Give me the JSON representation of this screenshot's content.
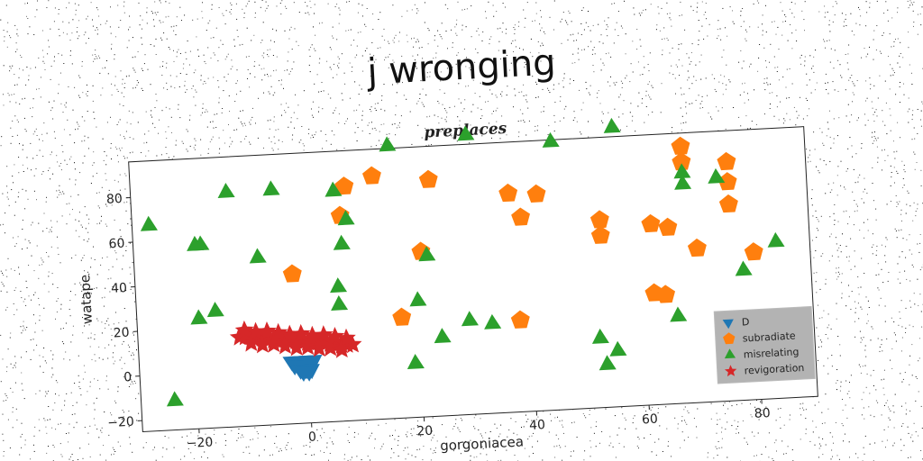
{
  "figure_title": "j wronging",
  "chart_data": {
    "type": "scatter",
    "title": "preplaces",
    "xlabel": "gorgoniacea",
    "ylabel": "watape",
    "xlim": [
      -30,
      90
    ],
    "ylim": [
      -25,
      96
    ],
    "x_ticks": [
      -20,
      0,
      20,
      40,
      60,
      80
    ],
    "y_ticks": [
      -20,
      0,
      20,
      40,
      60,
      80
    ],
    "grid": false,
    "legend_placement": "lower-right",
    "series": [
      {
        "name": "D",
        "color": "#1f77b4",
        "marker": "triangle-down",
        "points": [
          [
            -3,
            3
          ],
          [
            -2,
            3
          ],
          [
            -1,
            3
          ],
          [
            0,
            3
          ],
          [
            1,
            3
          ],
          [
            -2.5,
            1
          ],
          [
            -1.5,
            1
          ],
          [
            -0.5,
            1
          ],
          [
            0.5,
            1
          ],
          [
            -1.5,
            -1
          ],
          [
            -0.5,
            -1
          ],
          [
            0.5,
            -1
          ],
          [
            -1,
            -2
          ],
          [
            0,
            -2
          ]
        ]
      },
      {
        "name": "subradiate",
        "color": "#ff7f0e",
        "marker": "pentagon",
        "points": [
          [
            -2,
            42
          ],
          [
            8,
            80
          ],
          [
            7,
            67
          ],
          [
            13,
            84
          ],
          [
            21,
            49
          ],
          [
            23,
            81
          ],
          [
            17,
            20
          ],
          [
            37,
            73
          ],
          [
            39,
            62
          ],
          [
            42,
            72
          ],
          [
            38,
            16
          ],
          [
            53,
            59
          ],
          [
            53,
            52
          ],
          [
            62,
            56
          ],
          [
            65,
            54
          ],
          [
            62,
            25
          ],
          [
            64,
            24
          ],
          [
            68,
            83
          ],
          [
            70,
            44
          ],
          [
            76,
            82
          ],
          [
            76,
            73
          ],
          [
            76,
            63
          ],
          [
            80,
            41
          ],
          [
            68,
            90
          ]
        ]
      },
      {
        "name": "misrelating",
        "color": "#2ca02c",
        "marker": "triangle-up",
        "points": [
          [
            -27,
            67
          ],
          [
            -19,
            57
          ],
          [
            -18,
            57
          ],
          [
            -13,
            80
          ],
          [
            -8,
            50
          ],
          [
            -5,
            80
          ],
          [
            -19,
            24
          ],
          [
            -16,
            27
          ],
          [
            -24,
            -12
          ],
          [
            6,
            78
          ],
          [
            7,
            54
          ],
          [
            8,
            65
          ],
          [
            6,
            35
          ],
          [
            6,
            27
          ],
          [
            16,
            97
          ],
          [
            20,
            27
          ],
          [
            22,
            47
          ],
          [
            19,
            -1
          ],
          [
            24,
            10
          ],
          [
            29,
            17
          ],
          [
            33,
            15
          ],
          [
            30,
            100
          ],
          [
            45,
            95
          ],
          [
            52,
            6
          ],
          [
            53,
            -6
          ],
          [
            55,
            0
          ],
          [
            56,
            100
          ],
          [
            66,
            14
          ],
          [
            68,
            78
          ],
          [
            68,
            73
          ],
          [
            74,
            75
          ],
          [
            78,
            33
          ],
          [
            84,
            45
          ]
        ]
      },
      {
        "name": "revigoration",
        "color": "#d62728",
        "marker": "star",
        "points": [
          [
            -12,
            15
          ],
          [
            -11,
            15
          ],
          [
            -10,
            15
          ],
          [
            -9,
            14
          ],
          [
            -8,
            14
          ],
          [
            -7,
            14
          ],
          [
            -6,
            13
          ],
          [
            -5,
            13
          ],
          [
            -4,
            13
          ],
          [
            -3,
            12
          ],
          [
            -2,
            12
          ],
          [
            -1,
            12
          ],
          [
            0,
            11
          ],
          [
            1,
            11
          ],
          [
            2,
            11
          ],
          [
            3,
            10
          ],
          [
            4,
            10
          ],
          [
            5,
            10
          ],
          [
            6,
            9
          ],
          [
            7,
            9
          ],
          [
            8,
            9
          ],
          [
            -11,
            18
          ],
          [
            -9,
            17
          ],
          [
            -7,
            17
          ],
          [
            -5,
            16
          ],
          [
            -3,
            15
          ],
          [
            -1,
            15
          ],
          [
            1,
            14
          ],
          [
            3,
            14
          ],
          [
            5,
            13
          ],
          [
            7,
            12
          ],
          [
            -10,
            12
          ],
          [
            -8,
            11
          ],
          [
            -6,
            11
          ],
          [
            -4,
            10
          ],
          [
            -2,
            9
          ],
          [
            0,
            9
          ],
          [
            2,
            8
          ],
          [
            4,
            8
          ],
          [
            6,
            7
          ]
        ]
      }
    ]
  }
}
